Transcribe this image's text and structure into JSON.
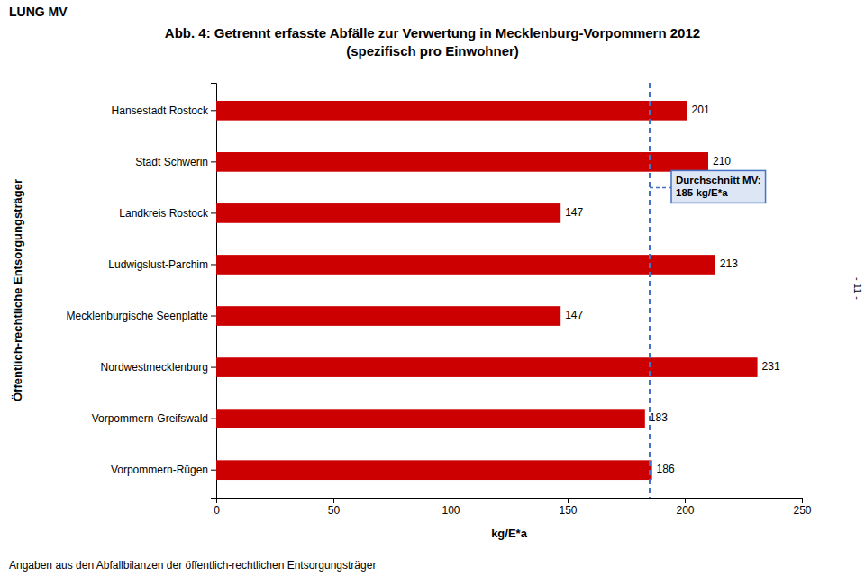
{
  "chart_data": {
    "type": "bar",
    "orientation": "horizontal",
    "title": "Abb. 4: Getrennt erfasste Abfälle zur Verwertung in Mecklenburg-Vorpommern 2012",
    "subtitle": "(spezifisch pro Einwohner)",
    "top_label": "LUNG MV",
    "page_label": "- 11 -",
    "footer": "Angaben aus den Abfallbilanzen der öffentlich-rechtlichen Entsorgungsträger",
    "xlabel": "kg/E*a",
    "ylabel": "Öffentlich-rechtliche Entsorgungsträger",
    "categories": [
      "Hansestadt Rostock",
      "Stadt Schwerin",
      "Landkreis Rostock",
      "Ludwigslust-Parchim",
      "Mecklenburgische Seenplatte",
      "Nordwestmecklenburg",
      "Vorpommern-Greifswald",
      "Vorpommern-Rügen"
    ],
    "values": [
      201,
      210,
      147,
      213,
      147,
      231,
      183,
      186
    ],
    "color": "#cc0000",
    "data_labels": true,
    "xlim": [
      0,
      250
    ],
    "xticks": [
      0,
      50,
      100,
      150,
      200,
      250
    ],
    "grid": false,
    "reference_line": {
      "value": 185,
      "label": "Durchschnitt MV:\n185 kg/E*a",
      "color": "#4472c4"
    }
  }
}
